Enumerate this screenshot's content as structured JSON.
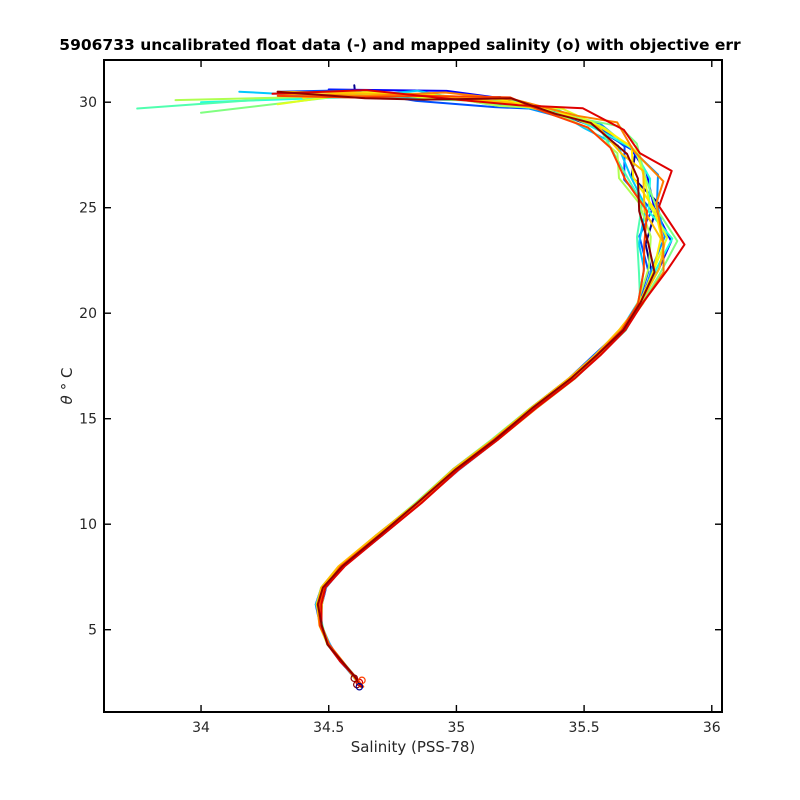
{
  "chart_data": {
    "type": "line",
    "title": "5906733 uncalibrated float data (-) and mapped salinity (o) with objective err",
    "xlabel": "Salinity (PSS-78)",
    "ylabel_symbol": "θ",
    "ylabel_unit": "° C",
    "xlim": [
      33.62,
      36.04
    ],
    "ylim": [
      1.1,
      32.0
    ],
    "x_ticks": [
      34,
      34.5,
      35,
      35.5,
      36
    ],
    "x_tick_labels": [
      "34",
      "34.5",
      "35",
      "35.5",
      "36"
    ],
    "y_ticks": [
      5,
      10,
      15,
      20,
      25,
      30
    ],
    "y_tick_labels": [
      "5",
      "10",
      "15",
      "20",
      "25",
      "30"
    ],
    "grid": false,
    "legend": "none",
    "colormap": "jet",
    "mean_profile": {
      "x": [
        34.63,
        34.6,
        34.55,
        34.5,
        34.47,
        34.46,
        34.48,
        34.55,
        34.7,
        34.85,
        35.0,
        35.15,
        35.3,
        35.45,
        35.55,
        35.65,
        35.72,
        35.76,
        35.77,
        35.75,
        35.72,
        35.66,
        35.55,
        35.4,
        35.2,
        34.9,
        34.6,
        34.25
      ],
      "y": [
        2.3,
        2.8,
        3.5,
        4.3,
        5.2,
        6.2,
        7.0,
        8.0,
        9.5,
        11.0,
        12.6,
        14.0,
        15.5,
        16.9,
        18.0,
        19.2,
        20.5,
        22.0,
        23.5,
        25.0,
        26.5,
        27.8,
        28.8,
        29.5,
        30.0,
        30.3,
        30.4,
        30.5
      ]
    },
    "n_profiles": 16,
    "series_colors": [
      "#00008f",
      "#0000ff",
      "#0050ff",
      "#0090ff",
      "#00c8ff",
      "#20ffdf",
      "#50ffaf",
      "#80ff80",
      "#afff50",
      "#dfff20",
      "#ffef00",
      "#ffbf00",
      "#ff8000",
      "#ff4000",
      "#df0000",
      "#8f0000"
    ],
    "profile_offsets": {
      "shallow_x": [
        0.0,
        0.03,
        -0.02,
        0.05,
        -0.05,
        0.04,
        -0.03,
        0.06,
        -0.04,
        0.02,
        -0.01,
        0.03,
        0.05,
        -0.02,
        0.08,
        0.0
      ],
      "mid_x": [
        0.0,
        0.01,
        -0.01,
        0.01,
        -0.01,
        0.0,
        0.01,
        -0.01,
        0.0,
        0.01,
        0.0,
        -0.01,
        0.01,
        0.0,
        0.01,
        0.0
      ],
      "surface_end_x": [
        34.6,
        34.5,
        34.3,
        34.5,
        34.15,
        34.0,
        33.75,
        34.0,
        33.9,
        34.3,
        34.4,
        34.3,
        34.3,
        34.3,
        34.28,
        34.3
      ],
      "surface_end_y": [
        30.8,
        30.6,
        30.5,
        30.3,
        30.5,
        30.0,
        29.7,
        29.5,
        30.1,
        29.9,
        30.2,
        30.5,
        30.4,
        30.3,
        30.4,
        30.5
      ]
    },
    "mapped_salinity": {
      "x": [
        34.61,
        34.62,
        34.63,
        34.62,
        34.6
      ],
      "y": [
        2.4,
        2.5,
        2.6,
        2.3,
        2.7
      ],
      "marker": "o",
      "colors": [
        "#8f0000",
        "#df0000",
        "#ff4000",
        "#00008f",
        "#8f0000"
      ]
    }
  }
}
